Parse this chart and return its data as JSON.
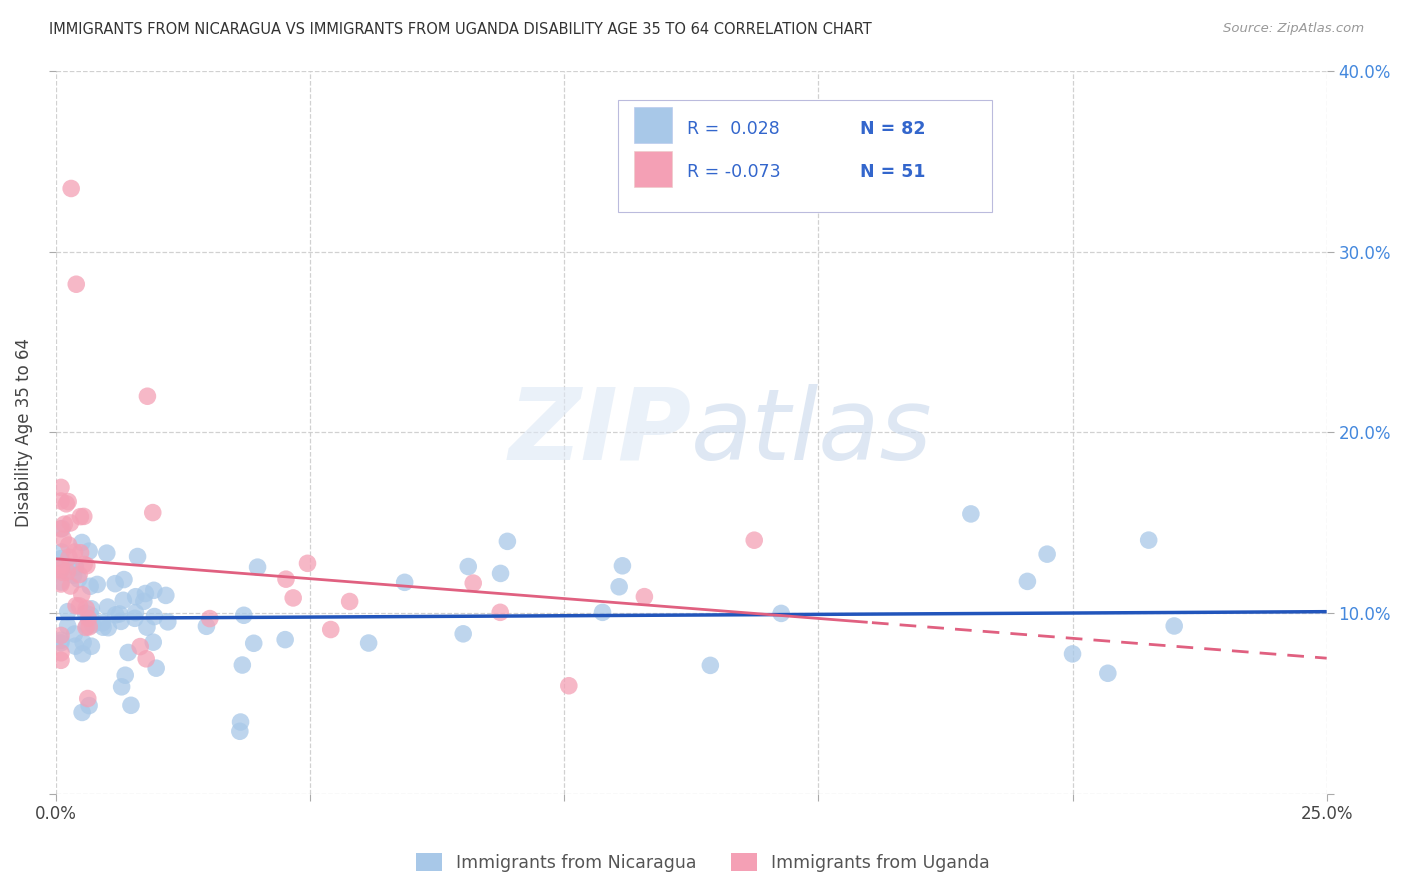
{
  "title": "IMMIGRANTS FROM NICARAGUA VS IMMIGRANTS FROM UGANDA DISABILITY AGE 35 TO 64 CORRELATION CHART",
  "source": "Source: ZipAtlas.com",
  "ylabel": "Disability Age 35 to 64",
  "xlim": [
    0.0,
    0.25
  ],
  "ylim": [
    0.0,
    0.4
  ],
  "color_nicaragua": "#a8c8e8",
  "color_uganda": "#f4a0b5",
  "trendline_nicaragua": "#2255bb",
  "trendline_uganda": "#e06080",
  "background_color": "#ffffff",
  "grid_color": "#cccccc",
  "watermark_color": "#dde8f5",
  "legend_text_color": "#3366cc",
  "legend_box_color": "#f0f0f8"
}
